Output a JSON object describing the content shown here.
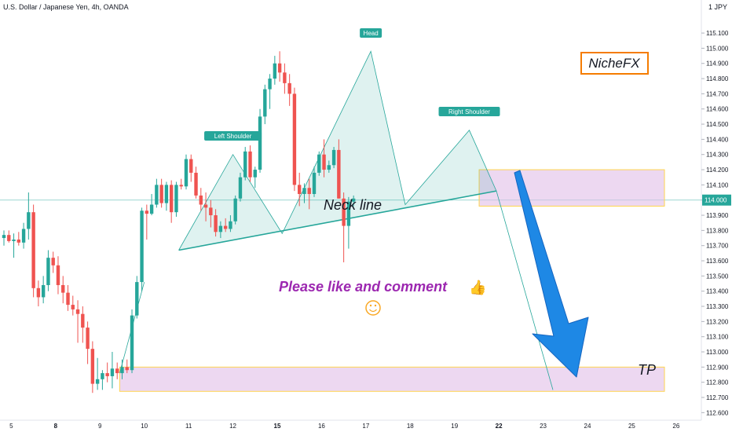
{
  "header": {
    "title": "U.S. Dollar / Japanese Yen, 4h, OANDA",
    "currency": "1 JPY"
  },
  "chart_data": {
    "type": "candlestick",
    "symbol": "USD/JPY",
    "timeframe": "4h",
    "ylim": [
      112.55,
      115.17
    ],
    "y_ticks": [
      112.6,
      112.7,
      112.8,
      112.9,
      113.0,
      113.1,
      113.2,
      113.3,
      113.4,
      113.5,
      113.6,
      113.7,
      113.8,
      113.9,
      114.0,
      114.1,
      114.2,
      114.3,
      114.4,
      114.5,
      114.6,
      114.7,
      114.8,
      114.9,
      115.0,
      115.1
    ],
    "current_price": "114.000",
    "x_ticks": [
      {
        "label": "5",
        "bar": 1.5,
        "bold": false
      },
      {
        "label": "8",
        "bar": 10.5,
        "bold": true
      },
      {
        "label": "9",
        "bar": 19.5,
        "bold": false
      },
      {
        "label": "10",
        "bar": 28.5,
        "bold": false
      },
      {
        "label": "11",
        "bar": 37.5,
        "bold": false
      },
      {
        "label": "12",
        "bar": 46.5,
        "bold": false
      },
      {
        "label": "15",
        "bar": 55.5,
        "bold": true
      },
      {
        "label": "16",
        "bar": 64.5,
        "bold": false
      },
      {
        "label": "17",
        "bar": 73.5,
        "bold": false
      },
      {
        "label": "18",
        "bar": 82.5,
        "bold": false
      },
      {
        "label": "19",
        "bar": 91.5,
        "bold": false
      },
      {
        "label": "22",
        "bar": 100.5,
        "bold": true
      },
      {
        "label": "23",
        "bar": 109.5,
        "bold": false
      },
      {
        "label": "24",
        "bar": 118.5,
        "bold": false
      },
      {
        "label": "25",
        "bar": 127.5,
        "bold": false
      },
      {
        "label": "26",
        "bar": 136.5,
        "bold": false
      }
    ],
    "candles": [
      {
        "o": 113.75,
        "h": 113.8,
        "l": 113.7,
        "c": 113.77
      },
      {
        "o": 113.77,
        "h": 113.8,
        "l": 113.72,
        "c": 113.73
      },
      {
        "o": 113.73,
        "h": 113.78,
        "l": 113.62,
        "c": 113.74
      },
      {
        "o": 113.74,
        "h": 113.79,
        "l": 113.7,
        "c": 113.72
      },
      {
        "o": 113.72,
        "h": 113.85,
        "l": 113.68,
        "c": 113.81
      },
      {
        "o": 113.81,
        "h": 114.05,
        "l": 113.74,
        "c": 113.92
      },
      {
        "o": 113.92,
        "h": 113.97,
        "l": 113.36,
        "c": 113.42
      },
      {
        "o": 113.42,
        "h": 113.47,
        "l": 113.3,
        "c": 113.36
      },
      {
        "o": 113.36,
        "h": 113.5,
        "l": 113.32,
        "c": 113.44
      },
      {
        "o": 113.44,
        "h": 113.67,
        "l": 113.4,
        "c": 113.62
      },
      {
        "o": 113.62,
        "h": 113.66,
        "l": 113.52,
        "c": 113.57
      },
      {
        "o": 113.57,
        "h": 113.63,
        "l": 113.38,
        "c": 113.44
      },
      {
        "o": 113.44,
        "h": 113.5,
        "l": 113.32,
        "c": 113.39
      },
      {
        "o": 113.39,
        "h": 113.44,
        "l": 113.27,
        "c": 113.31
      },
      {
        "o": 113.31,
        "h": 113.37,
        "l": 113.24,
        "c": 113.28
      },
      {
        "o": 113.28,
        "h": 113.34,
        "l": 113.06,
        "c": 113.25
      },
      {
        "o": 113.25,
        "h": 113.3,
        "l": 113.06,
        "c": 113.16
      },
      {
        "o": 113.16,
        "h": 113.2,
        "l": 112.92,
        "c": 113.02
      },
      {
        "o": 113.02,
        "h": 113.07,
        "l": 112.73,
        "c": 112.79
      },
      {
        "o": 112.79,
        "h": 112.96,
        "l": 112.75,
        "c": 112.82
      },
      {
        "o": 112.82,
        "h": 112.88,
        "l": 112.75,
        "c": 112.86
      },
      {
        "o": 112.86,
        "h": 112.93,
        "l": 112.8,
        "c": 112.84
      },
      {
        "o": 112.84,
        "h": 113.0,
        "l": 112.76,
        "c": 112.89
      },
      {
        "o": 112.89,
        "h": 112.93,
        "l": 112.82,
        "c": 112.86
      },
      {
        "o": 112.86,
        "h": 112.95,
        "l": 112.82,
        "c": 112.9
      },
      {
        "o": 112.9,
        "h": 112.95,
        "l": 112.86,
        "c": 112.88
      },
      {
        "o": 112.88,
        "h": 113.28,
        "l": 112.86,
        "c": 113.24
      },
      {
        "o": 113.24,
        "h": 113.5,
        "l": 113.22,
        "c": 113.46
      },
      {
        "o": 113.46,
        "h": 113.95,
        "l": 113.4,
        "c": 113.93
      },
      {
        "o": 113.93,
        "h": 113.97,
        "l": 113.74,
        "c": 113.91
      },
      {
        "o": 113.91,
        "h": 114.04,
        "l": 113.9,
        "c": 113.97
      },
      {
        "o": 113.97,
        "h": 114.14,
        "l": 113.95,
        "c": 114.1
      },
      {
        "o": 114.1,
        "h": 114.14,
        "l": 113.95,
        "c": 113.98
      },
      {
        "o": 113.98,
        "h": 114.12,
        "l": 113.93,
        "c": 114.1
      },
      {
        "o": 114.1,
        "h": 114.13,
        "l": 113.85,
        "c": 113.92
      },
      {
        "o": 113.92,
        "h": 114.12,
        "l": 113.89,
        "c": 114.1
      },
      {
        "o": 114.1,
        "h": 114.14,
        "l": 114.07,
        "c": 114.09
      },
      {
        "o": 114.09,
        "h": 114.3,
        "l": 114.07,
        "c": 114.27
      },
      {
        "o": 114.27,
        "h": 114.3,
        "l": 114.12,
        "c": 114.18
      },
      {
        "o": 114.18,
        "h": 114.22,
        "l": 114.01,
        "c": 114.03
      },
      {
        "o": 114.03,
        "h": 114.08,
        "l": 113.93,
        "c": 113.97
      },
      {
        "o": 113.97,
        "h": 114.05,
        "l": 113.86,
        "c": 113.95
      },
      {
        "o": 113.95,
        "h": 114.0,
        "l": 113.82,
        "c": 113.9
      },
      {
        "o": 113.9,
        "h": 113.94,
        "l": 113.76,
        "c": 113.79
      },
      {
        "o": 113.79,
        "h": 113.86,
        "l": 113.75,
        "c": 113.83
      },
      {
        "o": 113.83,
        "h": 113.88,
        "l": 113.79,
        "c": 113.81
      },
      {
        "o": 113.81,
        "h": 113.9,
        "l": 113.79,
        "c": 113.86
      },
      {
        "o": 113.86,
        "h": 114.03,
        "l": 113.84,
        "c": 114.01
      },
      {
        "o": 114.01,
        "h": 114.18,
        "l": 113.99,
        "c": 114.15
      },
      {
        "o": 114.15,
        "h": 114.35,
        "l": 114.13,
        "c": 114.32
      },
      {
        "o": 114.32,
        "h": 114.36,
        "l": 114.12,
        "c": 114.15
      },
      {
        "o": 114.15,
        "h": 114.22,
        "l": 114.08,
        "c": 114.2
      },
      {
        "o": 114.2,
        "h": 114.6,
        "l": 114.18,
        "c": 114.55
      },
      {
        "o": 114.55,
        "h": 114.76,
        "l": 114.5,
        "c": 114.73
      },
      {
        "o": 114.73,
        "h": 114.83,
        "l": 114.6,
        "c": 114.8
      },
      {
        "o": 114.8,
        "h": 114.95,
        "l": 114.76,
        "c": 114.9
      },
      {
        "o": 114.9,
        "h": 114.98,
        "l": 114.78,
        "c": 114.84
      },
      {
        "o": 114.84,
        "h": 114.9,
        "l": 114.7,
        "c": 114.77
      },
      {
        "o": 114.77,
        "h": 114.83,
        "l": 114.62,
        "c": 114.7
      },
      {
        "o": 114.7,
        "h": 114.74,
        "l": 114.06,
        "c": 114.1
      },
      {
        "o": 114.1,
        "h": 114.18,
        "l": 113.96,
        "c": 114.04
      },
      {
        "o": 114.04,
        "h": 114.11,
        "l": 113.98,
        "c": 114.08
      },
      {
        "o": 114.08,
        "h": 114.14,
        "l": 113.94,
        "c": 114.04
      },
      {
        "o": 114.04,
        "h": 114.22,
        "l": 114.02,
        "c": 114.18
      },
      {
        "o": 114.18,
        "h": 114.32,
        "l": 114.16,
        "c": 114.3
      },
      {
        "o": 114.3,
        "h": 114.4,
        "l": 114.15,
        "c": 114.2
      },
      {
        "o": 114.2,
        "h": 114.26,
        "l": 114.18,
        "c": 114.23
      },
      {
        "o": 114.23,
        "h": 114.35,
        "l": 114.21,
        "c": 114.33
      },
      {
        "o": 114.33,
        "h": 114.4,
        "l": 114.01,
        "c": 114.01
      },
      {
        "o": 114.01,
        "h": 114.05,
        "l": 113.59,
        "c": 113.83
      },
      {
        "o": 113.83,
        "h": 114.02,
        "l": 113.68,
        "c": 113.99
      },
      {
        "o": 113.99,
        "h": 114.03,
        "l": 113.96,
        "c": 114.01
      }
    ],
    "annotations": {
      "head_label": "Head",
      "left_shoulder_label": "Left Shoulder",
      "right_shoulder_label": "Right Shoulder",
      "neck_line_text": "Neck line",
      "brand_text": "NicheFX",
      "comment_text": "Please like and comment",
      "tp_text": "TP",
      "thumbs_up_icon": "👍",
      "smiley_icon": "☺"
    },
    "zones": {
      "resistance_band": [
        113.96,
        114.2
      ],
      "tp_band": [
        112.74,
        112.9
      ]
    }
  },
  "colors": {
    "up": "#26a69a",
    "down": "#ef5350",
    "pattern_fill": "#26a69a",
    "zone_fill": "#e1bee7",
    "zone_border": "#ffd54f",
    "brand_border": "#f57c00",
    "comment": "#9c27b0",
    "arrow": "#1e88e5",
    "smiley": "#f9a825"
  }
}
